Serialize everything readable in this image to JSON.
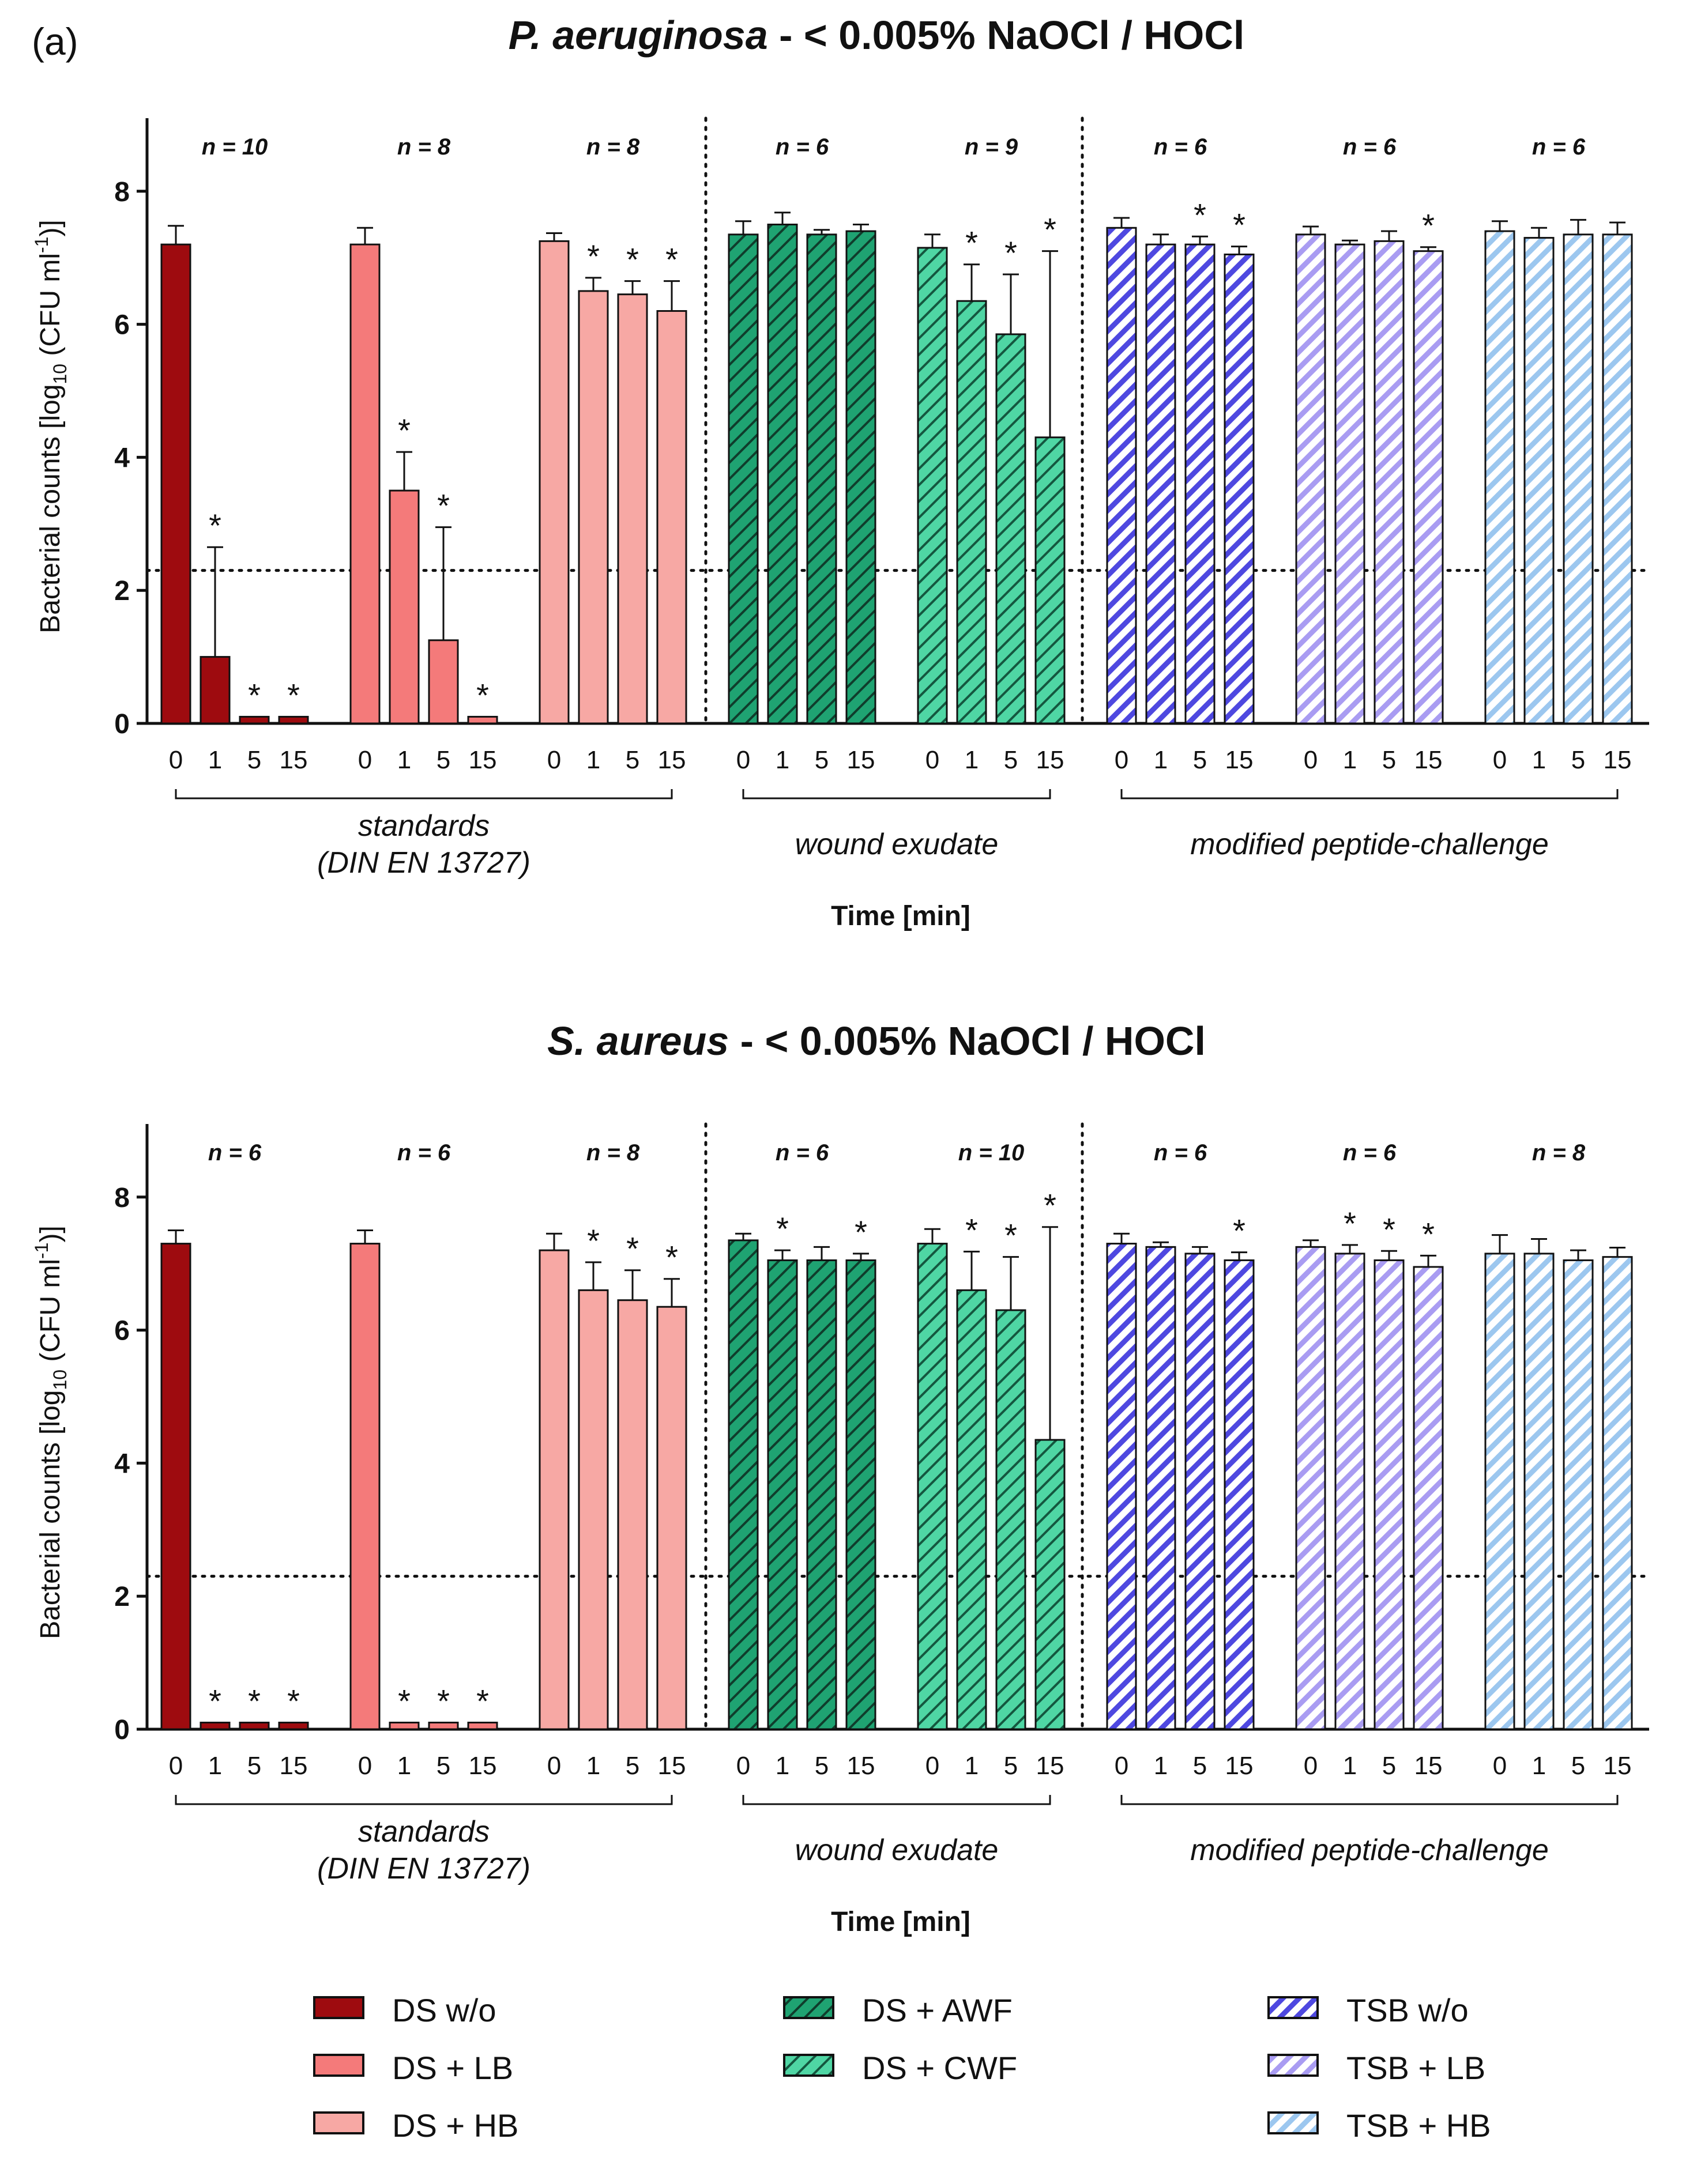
{
  "panel_label": "(a)",
  "colors": {
    "DS w/o": "#9e0b0f",
    "DS + LB": "#f47a7a",
    "DS + HB": "#f7a8a4",
    "DS + AWF": "#1fa372",
    "DS + CWF": "#4fd6a4",
    "TSB w/o": "#4e48e0",
    "TSB + LB": "#a99cf2",
    "TSB + HB": "#9cc7ef"
  },
  "legend": {
    "items": [
      {
        "label": "DS w/o",
        "hatch": false
      },
      {
        "label": "DS + LB",
        "hatch": false
      },
      {
        "label": "DS + HB",
        "hatch": false
      },
      {
        "label": "DS + AWF",
        "hatch": true
      },
      {
        "label": "DS + CWF",
        "hatch": true
      },
      {
        "label": "TSB w/o",
        "hatch": true
      },
      {
        "label": "TSB + LB",
        "hatch": true
      },
      {
        "label": "TSB + HB",
        "hatch": true
      }
    ]
  },
  "chart_data": [
    {
      "type": "bar",
      "title_species": "P. aeruginosa",
      "title_rest": " - < 0.005% NaOCl / HOCl",
      "ylabel_pre": "Bacterial counts [log",
      "ylabel_sub": "10",
      "ylabel_mid": " (CFU ml",
      "ylabel_sup": "-1",
      "ylabel_post": ")]",
      "xlabel": "Time [min]",
      "ylim": [
        0,
        9
      ],
      "yticks": [
        0,
        2,
        4,
        6,
        8
      ],
      "detection_limit": 2.3,
      "categories": [
        "0",
        "1",
        "5",
        "15"
      ],
      "group_labels": [
        {
          "line1": "standards",
          "line2": "(DIN EN 13727)"
        },
        {
          "line1": "wound exudate",
          "line2": ""
        },
        {
          "line1": "modified peptide-challenge",
          "line2": ""
        }
      ],
      "series": [
        {
          "name": "DS w/o",
          "n_label": "n = 10",
          "values": [
            7.2,
            1.0,
            0.1,
            0.1
          ],
          "errors": [
            0.28,
            1.65,
            0,
            0
          ],
          "significant": [
            false,
            true,
            true,
            true
          ]
        },
        {
          "name": "DS + LB",
          "n_label": "n = 8",
          "values": [
            7.2,
            3.5,
            1.25,
            0.1
          ],
          "errors": [
            0.25,
            0.58,
            1.7,
            0
          ],
          "significant": [
            false,
            true,
            true,
            true
          ]
        },
        {
          "name": "DS + HB",
          "n_label": "n = 8",
          "values": [
            7.25,
            6.5,
            6.45,
            6.2
          ],
          "errors": [
            0.12,
            0.2,
            0.2,
            0.45
          ],
          "significant": [
            false,
            true,
            true,
            true
          ]
        },
        {
          "name": "DS + AWF",
          "n_label": "n = 6",
          "values": [
            7.35,
            7.5,
            7.35,
            7.4
          ],
          "errors": [
            0.2,
            0.18,
            0.07,
            0.1
          ],
          "significant": [
            false,
            false,
            false,
            false
          ]
        },
        {
          "name": "DS + CWF",
          "n_label": "n = 9",
          "values": [
            7.15,
            6.35,
            5.85,
            4.3
          ],
          "errors": [
            0.2,
            0.55,
            0.9,
            2.8
          ],
          "significant": [
            false,
            true,
            true,
            true
          ]
        },
        {
          "name": "TSB w/o",
          "n_label": "n = 6",
          "values": [
            7.45,
            7.2,
            7.2,
            7.05
          ],
          "errors": [
            0.15,
            0.15,
            0.12,
            0.12
          ],
          "significant": [
            false,
            false,
            true,
            true
          ]
        },
        {
          "name": "TSB + LB",
          "n_label": "n = 6",
          "values": [
            7.35,
            7.2,
            7.25,
            7.1
          ],
          "errors": [
            0.12,
            0.06,
            0.15,
            0.06
          ],
          "significant": [
            false,
            false,
            false,
            true
          ]
        },
        {
          "name": "TSB + HB",
          "n_label": "n = 6",
          "values": [
            7.4,
            7.3,
            7.35,
            7.35
          ],
          "errors": [
            0.15,
            0.15,
            0.22,
            0.18
          ],
          "significant": [
            false,
            false,
            false,
            false
          ]
        }
      ]
    },
    {
      "type": "bar",
      "title_species": "S. aureus",
      "title_rest": " - < 0.005% NaOCl / HOCl",
      "ylabel_pre": "Bacterial counts [log",
      "ylabel_sub": "10",
      "ylabel_mid": " (CFU ml",
      "ylabel_sup": "-1",
      "ylabel_post": ")]",
      "xlabel": "Time [min]",
      "ylim": [
        0,
        9
      ],
      "yticks": [
        0,
        2,
        4,
        6,
        8
      ],
      "detection_limit": 2.3,
      "categories": [
        "0",
        "1",
        "5",
        "15"
      ],
      "group_labels": [
        {
          "line1": "standards",
          "line2": "(DIN EN 13727)"
        },
        {
          "line1": "wound exudate",
          "line2": ""
        },
        {
          "line1": "modified peptide-challenge",
          "line2": ""
        }
      ],
      "series": [
        {
          "name": "DS w/o",
          "n_label": "n = 6",
          "values": [
            7.3,
            0.1,
            0.1,
            0.1
          ],
          "errors": [
            0.2,
            0,
            0,
            0
          ],
          "significant": [
            false,
            true,
            true,
            true
          ]
        },
        {
          "name": "DS + LB",
          "n_label": "n = 6",
          "values": [
            7.3,
            0.1,
            0.1,
            0.1
          ],
          "errors": [
            0.2,
            0,
            0,
            0
          ],
          "significant": [
            false,
            true,
            true,
            true
          ]
        },
        {
          "name": "DS + HB",
          "n_label": "n = 8",
          "values": [
            7.2,
            6.6,
            6.45,
            6.35
          ],
          "errors": [
            0.25,
            0.42,
            0.45,
            0.42
          ],
          "significant": [
            false,
            true,
            true,
            true
          ]
        },
        {
          "name": "DS + AWF",
          "n_label": "n = 6",
          "values": [
            7.35,
            7.05,
            7.05,
            7.05
          ],
          "errors": [
            0.1,
            0.15,
            0.2,
            0.1
          ],
          "significant": [
            false,
            true,
            false,
            true
          ]
        },
        {
          "name": "DS + CWF",
          "n_label": "n = 10",
          "values": [
            7.3,
            6.6,
            6.3,
            4.35
          ],
          "errors": [
            0.22,
            0.58,
            0.8,
            3.2
          ],
          "significant": [
            false,
            true,
            true,
            true
          ]
        },
        {
          "name": "TSB w/o",
          "n_label": "n = 6",
          "values": [
            7.3,
            7.25,
            7.15,
            7.05
          ],
          "errors": [
            0.15,
            0.07,
            0.1,
            0.12
          ],
          "significant": [
            false,
            false,
            false,
            true
          ]
        },
        {
          "name": "TSB + LB",
          "n_label": "n = 6",
          "values": [
            7.25,
            7.15,
            7.05,
            6.95
          ],
          "errors": [
            0.1,
            0.13,
            0.14,
            0.17
          ],
          "significant": [
            false,
            true,
            true,
            true
          ]
        },
        {
          "name": "TSB + HB",
          "n_label": "n = 8",
          "values": [
            7.15,
            7.15,
            7.05,
            7.1
          ],
          "errors": [
            0.28,
            0.22,
            0.15,
            0.14
          ],
          "significant": [
            false,
            false,
            false,
            false
          ]
        }
      ]
    }
  ]
}
